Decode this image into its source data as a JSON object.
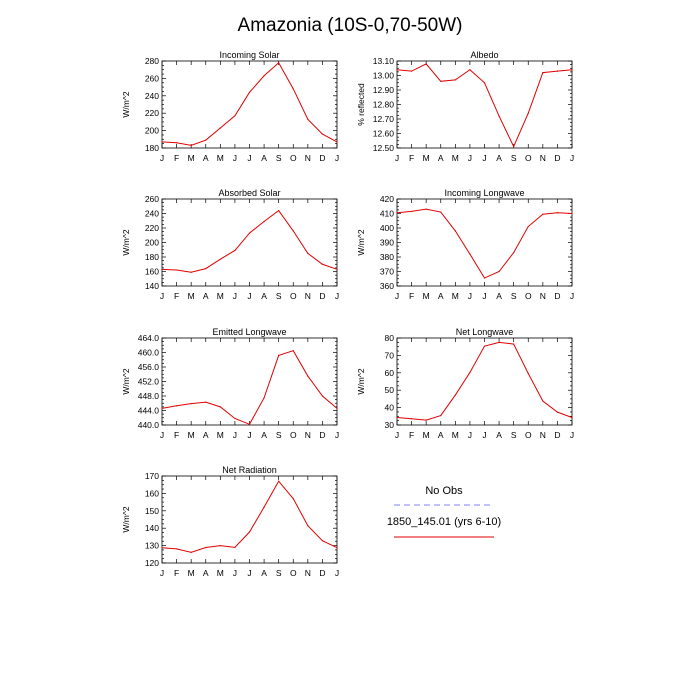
{
  "page_title": "Amazonia (10S-0,70-50W)",
  "months": [
    "J",
    "F",
    "M",
    "A",
    "M",
    "J",
    "J",
    "A",
    "S",
    "O",
    "N",
    "D",
    "J"
  ],
  "legend": {
    "obs_label": "No Obs",
    "obs_color": "#8080ff",
    "model_label": "1850_145.01 (yrs 6-10)",
    "model_color": "#e00000"
  },
  "chart_data": [
    {
      "type": "line",
      "title": "Incoming Solar",
      "ylabel": "W/m^2",
      "ylim": [
        180,
        280
      ],
      "yticks": [
        180,
        200,
        220,
        240,
        260,
        280
      ],
      "ytick_labels": [
        "180",
        "200",
        "220",
        "240",
        "260",
        "280"
      ],
      "x": [
        "J",
        "F",
        "M",
        "A",
        "M",
        "J",
        "J",
        "A",
        "S",
        "O",
        "N",
        "D",
        "J"
      ],
      "series": [
        {
          "name": "1850_145.01 (yrs 6-10)",
          "values": [
            187,
            186,
            183,
            189,
            203,
            217,
            244,
            263,
            278,
            248,
            213,
            196,
            187
          ]
        }
      ]
    },
    {
      "type": "line",
      "title": "Albedo",
      "ylabel": "% reflected",
      "ylim": [
        12.5,
        13.1
      ],
      "yticks": [
        12.5,
        12.6,
        12.7,
        12.8,
        12.9,
        13.0,
        13.1
      ],
      "ytick_labels": [
        "12.50",
        "12.60",
        "12.70",
        "12.80",
        "12.90",
        "13.00",
        "13.10"
      ],
      "x": [
        "J",
        "F",
        "M",
        "A",
        "M",
        "J",
        "J",
        "A",
        "S",
        "O",
        "N",
        "D",
        "J"
      ],
      "series": [
        {
          "name": "1850_145.01 (yrs 6-10)",
          "values": [
            13.04,
            13.03,
            13.08,
            12.96,
            12.97,
            13.04,
            12.95,
            12.72,
            12.51,
            12.74,
            13.02,
            13.03,
            13.04
          ]
        }
      ]
    },
    {
      "type": "line",
      "title": "Absorbed Solar",
      "ylabel": "W/m^2",
      "ylim": [
        140,
        260
      ],
      "yticks": [
        140,
        160,
        180,
        200,
        220,
        240,
        260
      ],
      "ytick_labels": [
        "140",
        "160",
        "180",
        "200",
        "220",
        "240",
        "260"
      ],
      "x": [
        "J",
        "F",
        "M",
        "A",
        "M",
        "J",
        "J",
        "A",
        "S",
        "O",
        "N",
        "D",
        "J"
      ],
      "series": [
        {
          "name": "1850_145.01 (yrs 6-10)",
          "values": [
            163,
            162,
            159,
            164,
            177,
            189,
            213,
            229,
            244,
            216,
            185,
            170,
            163
          ]
        }
      ]
    },
    {
      "type": "line",
      "title": "Incoming Longwave",
      "ylabel": "W/m^2",
      "ylim": [
        360,
        420
      ],
      "yticks": [
        360,
        370,
        380,
        390,
        400,
        410,
        420
      ],
      "ytick_labels": [
        "360",
        "370",
        "380",
        "390",
        "400",
        "410",
        "420"
      ],
      "x": [
        "J",
        "F",
        "M",
        "A",
        "M",
        "J",
        "J",
        "A",
        "S",
        "O",
        "N",
        "D",
        "J"
      ],
      "series": [
        {
          "name": "1850_145.01 (yrs 6-10)",
          "values": [
            410.5,
            411.5,
            413,
            411,
            398,
            382,
            365.5,
            370,
            383,
            401,
            409.5,
            410.5,
            410
          ]
        }
      ]
    },
    {
      "type": "line",
      "title": "Emitted Longwave",
      "ylabel": "W/m^2",
      "ylim": [
        440,
        464
      ],
      "yticks": [
        440,
        444,
        448,
        452,
        456,
        460,
        464
      ],
      "ytick_labels": [
        "440.0",
        "444.0",
        "448.0",
        "452.0",
        "456.0",
        "460.0",
        "464.0"
      ],
      "x": [
        "J",
        "F",
        "M",
        "A",
        "M",
        "J",
        "J",
        "A",
        "S",
        "O",
        "N",
        "D",
        "J"
      ],
      "series": [
        {
          "name": "1850_145.01 (yrs 6-10)",
          "values": [
            444.6,
            445.3,
            445.9,
            446.3,
            445,
            441.8,
            440.2,
            447.5,
            459.2,
            460.5,
            453.5,
            448,
            444.6
          ]
        }
      ]
    },
    {
      "type": "line",
      "title": "Net Longwave",
      "ylabel": "W/m^2",
      "ylim": [
        30,
        80
      ],
      "yticks": [
        30,
        40,
        50,
        60,
        70,
        80
      ],
      "ytick_labels": [
        "30",
        "40",
        "50",
        "60",
        "70",
        "80"
      ],
      "x": [
        "J",
        "F",
        "M",
        "A",
        "M",
        "J",
        "J",
        "A",
        "S",
        "O",
        "N",
        "D",
        "J"
      ],
      "series": [
        {
          "name": "1850_145.01 (yrs 6-10)",
          "values": [
            34.3,
            33.6,
            32.8,
            35.4,
            47.2,
            60.2,
            75.3,
            77.5,
            76.5,
            59.6,
            43.8,
            37.4,
            34.3
          ]
        }
      ]
    },
    {
      "type": "line",
      "title": "Net Radiation",
      "ylabel": "W/m^2",
      "ylim": [
        120,
        170
      ],
      "yticks": [
        120,
        130,
        140,
        150,
        160,
        170
      ],
      "ytick_labels": [
        "120",
        "130",
        "140",
        "150",
        "160",
        "170"
      ],
      "x": [
        "J",
        "F",
        "M",
        "A",
        "M",
        "J",
        "J",
        "A",
        "S",
        "O",
        "N",
        "D",
        "J"
      ],
      "series": [
        {
          "name": "1850_145.01 (yrs 6-10)",
          "values": [
            128.8,
            128.1,
            126.1,
            128.9,
            130,
            129,
            137.8,
            152.1,
            167,
            157,
            141.4,
            132.8,
            128.8
          ]
        }
      ]
    }
  ]
}
